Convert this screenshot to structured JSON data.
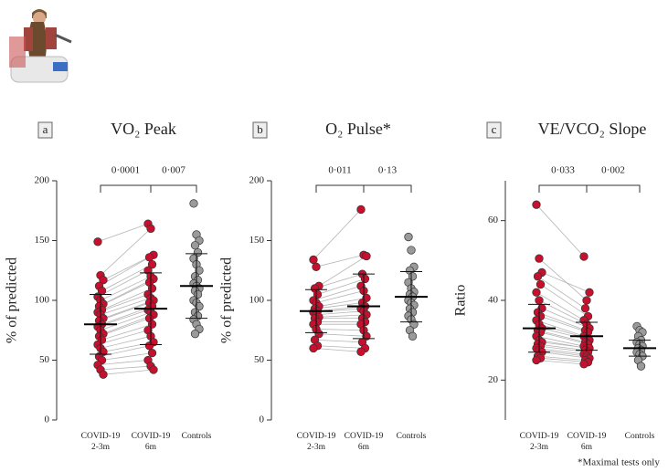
{
  "chart_data": [
    {
      "type": "paired-dot",
      "panel": "a",
      "title": "VO₂ Peak",
      "ylabel": "% of predicted",
      "categories": [
        [
          "COVID-19",
          "2-3m"
        ],
        [
          "COVID-19",
          "6m"
        ],
        [
          "Controls"
        ]
      ],
      "colors": [
        "#c8102e",
        "#c8102e",
        "#9a9a9a"
      ],
      "paired": true,
      "annotations": [
        "0·0001",
        "0·007"
      ],
      "ylim": [
        0,
        200
      ],
      "yticks": [
        0,
        50,
        100,
        150,
        200
      ],
      "values": [
        [
          149,
          121,
          117,
          112,
          108,
          103,
          100,
          97,
          95,
          92,
          90,
          88,
          85,
          83,
          80,
          78,
          75,
          72,
          70,
          67,
          63,
          60,
          57,
          53,
          50,
          46,
          42,
          38
        ],
        [
          164,
          160,
          138,
          136,
          130,
          125,
          120,
          118,
          115,
          110,
          105,
          102,
          100,
          98,
          95,
          92,
          90,
          88,
          85,
          80,
          75,
          70,
          65,
          62,
          56,
          50,
          45,
          42
        ],
        [
          181,
          155,
          150,
          146,
          140,
          135,
          130,
          125,
          120,
          117,
          114,
          112,
          110,
          108,
          105,
          100,
          98,
          95,
          90,
          87,
          84,
          80,
          76,
          72
        ]
      ],
      "mean": [
        80,
        93,
        112
      ],
      "sd": [
        25,
        30,
        27
      ]
    },
    {
      "type": "paired-dot",
      "panel": "b",
      "title": "O₂ Pulse*",
      "ylabel": "% of predicted",
      "categories": [
        [
          "COVID-19",
          "2-3m"
        ],
        [
          "COVID-19",
          "6m"
        ],
        [
          "Controls"
        ]
      ],
      "colors": [
        "#c8102e",
        "#c8102e",
        "#9a9a9a"
      ],
      "paired": true,
      "annotations": [
        "0·011",
        "0·13"
      ],
      "ylim": [
        0,
        200
      ],
      "yticks": [
        0,
        50,
        100,
        150,
        200
      ],
      "values": [
        [
          134,
          128,
          112,
          110,
          105,
          100,
          98,
          95,
          93,
          91,
          90,
          88,
          86,
          85,
          82,
          80,
          76,
          72,
          67,
          62,
          60
        ],
        [
          176,
          138,
          137,
          122,
          118,
          112,
          108,
          102,
          98,
          95,
          93,
          91,
          88,
          85,
          82,
          80,
          75,
          70,
          65,
          60,
          57
        ],
        [
          153,
          142,
          128,
          125,
          120,
          115,
          110,
          107,
          105,
          103,
          100,
          98,
          96,
          93,
          90,
          87,
          84,
          80,
          75,
          70
        ]
      ],
      "mean": [
        91,
        95,
        103
      ],
      "sd": [
        18,
        27,
        21
      ]
    },
    {
      "type": "paired-dot",
      "panel": "c",
      "title": "VE/VCO₂ Slope",
      "ylabel": "Ratio",
      "categories": [
        [
          "COVID-19",
          "2-3m"
        ],
        [
          "COVID-19",
          "6m"
        ],
        [
          "Controls"
        ]
      ],
      "colors": [
        "#c8102e",
        "#c8102e",
        "#9a9a9a"
      ],
      "paired": true,
      "annotations": [
        "0·033",
        "0·002"
      ],
      "ylim": [
        10,
        70
      ],
      "yticks": [
        20,
        40,
        60
      ],
      "values": [
        [
          64,
          50.5,
          47,
          46,
          44,
          42,
          40,
          38,
          37,
          36,
          35,
          34,
          33,
          32.5,
          32,
          31,
          30,
          29.5,
          29,
          28.5,
          28,
          27.5,
          27,
          26,
          25.5,
          25
        ],
        [
          51,
          40,
          42,
          38,
          36,
          35,
          34,
          33,
          32.5,
          32,
          31,
          30.5,
          30,
          29.5,
          29,
          28.5,
          28,
          28,
          27.5,
          27,
          26.5,
          26,
          25.5,
          25,
          24.5,
          24
        ],
        [
          33.5,
          32.5,
          32,
          31,
          30,
          29.5,
          29,
          28.5,
          28,
          27.5,
          27,
          26.5,
          26,
          25,
          23.5
        ]
      ],
      "mean": [
        33,
        31,
        28
      ],
      "sd": [
        6,
        3.5,
        2
      ]
    }
  ],
  "footnote": "*Maximal tests only"
}
